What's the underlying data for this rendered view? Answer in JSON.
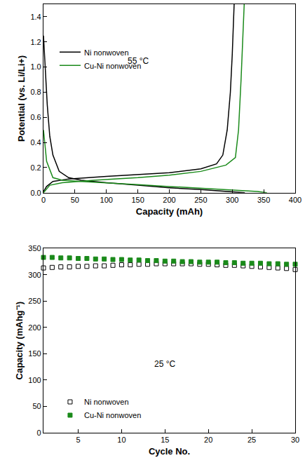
{
  "chart_data": [
    {
      "type": "line",
      "xlabel": "Capacity (mAh)",
      "ylabel": "Potential (vs. Li/Li+)",
      "xlim": [
        0,
        400
      ],
      "xticks": [
        0,
        50,
        100,
        150,
        200,
        250,
        300,
        350,
        400
      ],
      "ylim": [
        0,
        1.5
      ],
      "yticks": [
        {
          "value": 0,
          "label": "0.0"
        },
        0.2,
        0.4,
        0.6,
        0.8,
        {
          "value": 1,
          "label": "1.0"
        },
        1.2,
        1.4
      ],
      "grid": false,
      "legend": "center left",
      "annotations": [
        {
          "text": "55 °C",
          "x": 150,
          "y": 1.05
        }
      ],
      "series": [
        {
          "name": "Ni nonwoven",
          "color": "#000000",
          "line_style": "solid",
          "x": [
            0,
            3,
            6,
            10,
            15,
            25,
            40,
            60,
            100,
            150,
            200,
            250,
            300,
            320,
            null,
            0,
            5,
            15,
            40,
            100,
            150,
            200,
            250,
            275,
            285,
            292,
            297,
            300,
            303
          ],
          "values": [
            1.25,
            1.0,
            0.7,
            0.45,
            0.3,
            0.17,
            0.12,
            0.1,
            0.08,
            0.06,
            0.04,
            0.025,
            0.01,
            0.0,
            null,
            0.01,
            0.05,
            0.09,
            0.11,
            0.13,
            0.145,
            0.16,
            0.19,
            0.23,
            0.3,
            0.5,
            0.8,
            1.1,
            1.5
          ]
        },
        {
          "name": "Cu-Ni nonwoven",
          "color": "#1a8a1a",
          "line_style": "solid",
          "x": [
            0,
            5,
            15,
            30,
            60,
            100,
            150,
            200,
            250,
            300,
            340,
            355,
            null,
            0,
            10,
            30,
            80,
            150,
            200,
            250,
            290,
            305,
            310,
            314,
            317,
            319
          ],
          "values": [
            0.5,
            0.25,
            0.12,
            0.1,
            0.09,
            0.08,
            0.065,
            0.05,
            0.035,
            0.02,
            0.01,
            0.0,
            null,
            0.0,
            0.06,
            0.08,
            0.1,
            0.12,
            0.14,
            0.17,
            0.22,
            0.28,
            0.5,
            0.9,
            1.3,
            1.5
          ]
        }
      ]
    },
    {
      "type": "scatter",
      "xlabel": "Cycle No.",
      "ylabel": "Capacity (mAhg⁻¹)",
      "xlim": [
        1,
        30
      ],
      "xticks": [
        5,
        10,
        15,
        20,
        25,
        30
      ],
      "ylim": [
        0,
        350
      ],
      "yticks": [
        0,
        50,
        100,
        150,
        200,
        250,
        300,
        350
      ],
      "grid": false,
      "legend": "lower left",
      "annotations": [
        {
          "text": "25 °C",
          "x": 15,
          "y": 130
        }
      ],
      "x": [
        1,
        2,
        3,
        4,
        5,
        6,
        7,
        8,
        9,
        10,
        11,
        12,
        13,
        14,
        15,
        16,
        17,
        18,
        19,
        20,
        21,
        22,
        23,
        24,
        25,
        26,
        27,
        28,
        29,
        30
      ],
      "series": [
        {
          "name": "Ni nonwoven",
          "color": "#000000",
          "marker": "square-open",
          "values": [
            313,
            314,
            315,
            315,
            316,
            316,
            317,
            317,
            318,
            319,
            319,
            320,
            320,
            321,
            321,
            321,
            321,
            321,
            320,
            320,
            319,
            318,
            318,
            317,
            316,
            315,
            314,
            313,
            312,
            310
          ]
        },
        {
          "name": "Cu-Ni nonwoven",
          "color": "#1a8a1a",
          "marker": "square",
          "values": [
            333,
            333,
            332,
            332,
            331,
            331,
            330,
            330,
            329,
            329,
            328,
            328,
            327,
            327,
            326,
            326,
            325,
            325,
            324,
            324,
            324,
            323,
            323,
            322,
            322,
            322,
            321,
            321,
            320,
            320
          ]
        }
      ]
    }
  ]
}
